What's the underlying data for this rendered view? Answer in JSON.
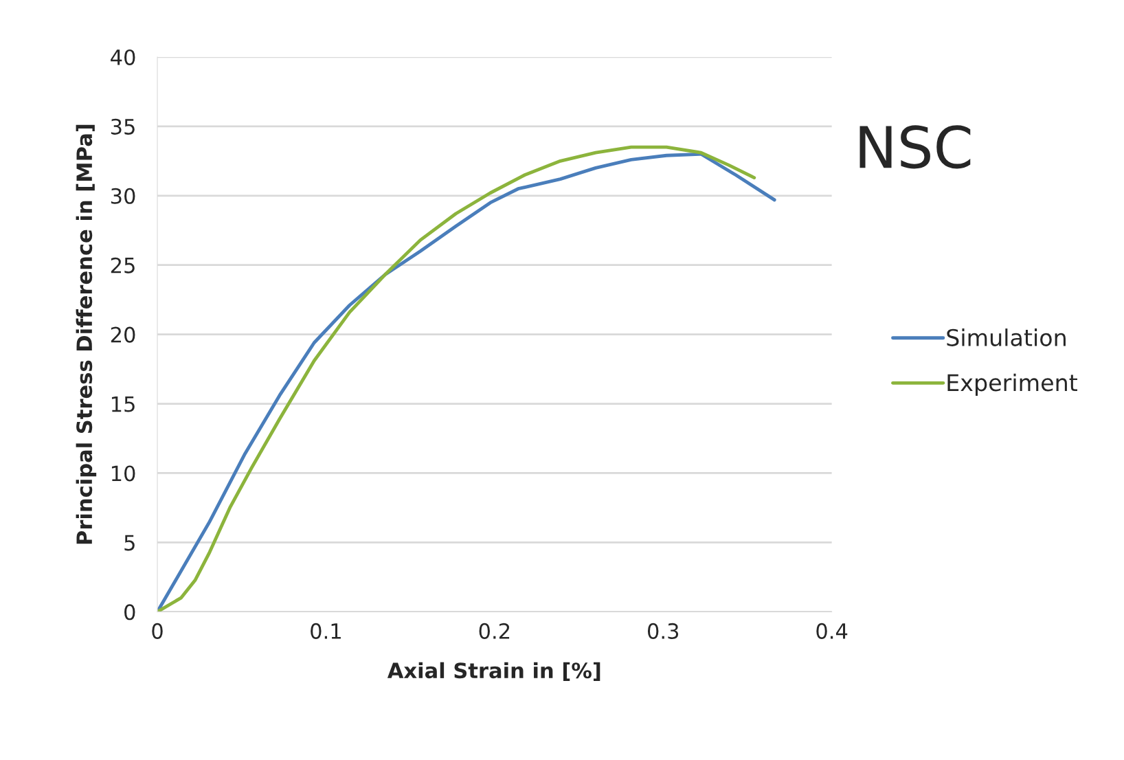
{
  "chart_data": {
    "type": "line",
    "title": "NSC",
    "xlabel": "Axial Strain in [%]",
    "ylabel": "Principal Stress Difference in [MPa]",
    "xlim": [
      0,
      0.4
    ],
    "xticks": [
      0,
      0.1,
      0.2,
      0.3,
      0.4
    ],
    "ylim": [
      0,
      40
    ],
    "yticks": [
      0,
      5,
      10,
      15,
      20,
      25,
      30,
      35,
      40
    ],
    "grid": "y",
    "legend": "right",
    "marker": "none",
    "line_style": "solid",
    "series": [
      {
        "name": "Simulation",
        "color": "#4a7ebb",
        "x": [
          0,
          0.031,
          0.052,
          0.0725,
          0.093,
          0.114,
          0.135,
          0.156,
          0.177,
          0.1975,
          0.214,
          0.239,
          0.26,
          0.281,
          0.302,
          0.3225,
          0.343,
          0.366
        ],
        "values": [
          0,
          6.5,
          11.4,
          15.6,
          19.4,
          22.1,
          24.3,
          26.0,
          27.8,
          29.5,
          30.5,
          31.2,
          32.0,
          32.6,
          32.9,
          33.0,
          31.5,
          29.7
        ]
      },
      {
        "name": "Experiment",
        "color": "#8cb43c",
        "x": [
          0,
          0.014,
          0.0225,
          0.031,
          0.043,
          0.056,
          0.0725,
          0.093,
          0.114,
          0.135,
          0.156,
          0.177,
          0.1975,
          0.218,
          0.239,
          0.26,
          0.281,
          0.302,
          0.3225,
          0.339,
          0.354
        ],
        "values": [
          0,
          1.0,
          2.3,
          4.3,
          7.5,
          10.4,
          13.9,
          18.1,
          21.6,
          24.3,
          26.8,
          28.7,
          30.2,
          31.5,
          32.5,
          33.1,
          33.5,
          33.5,
          33.1,
          32.2,
          31.3
        ]
      }
    ]
  }
}
